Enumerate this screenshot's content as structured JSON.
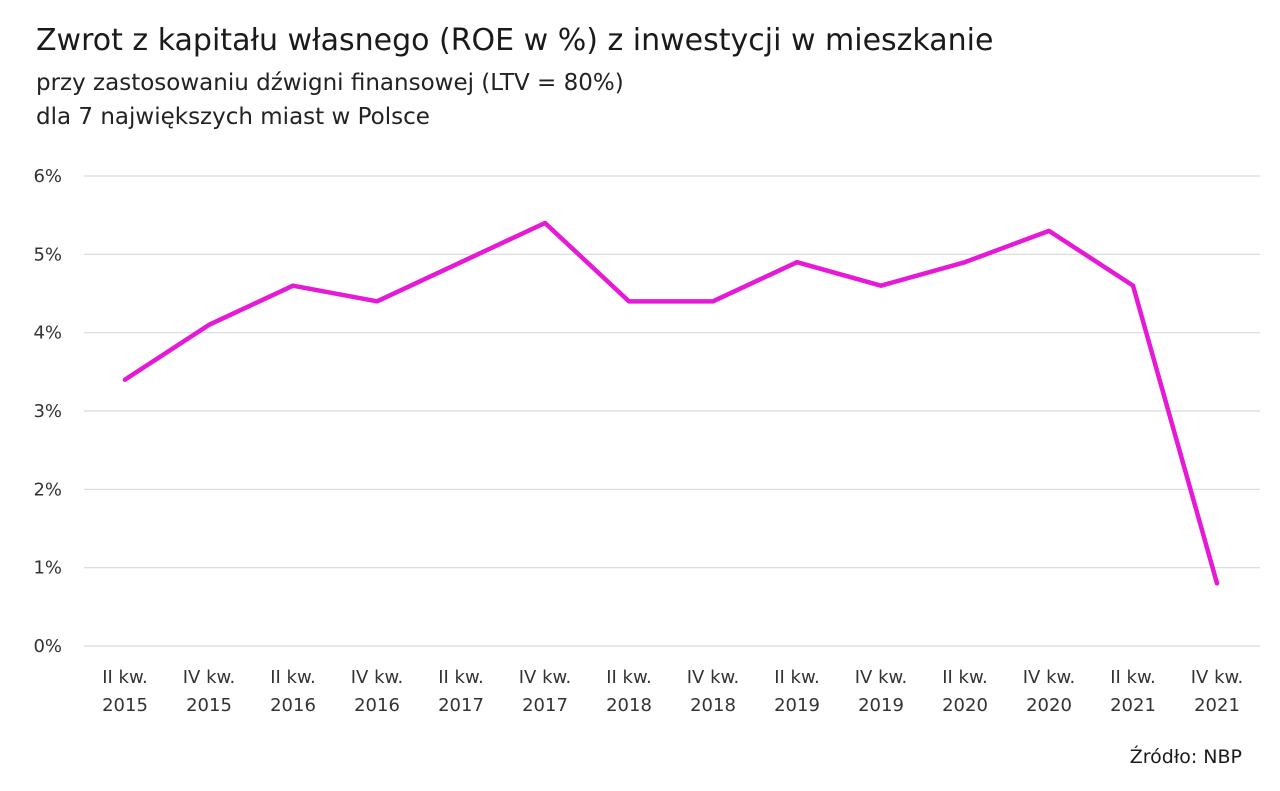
{
  "title": "Zwrot z kapitału własnego (ROE w %) z inwestycji w mieszkanie",
  "subtitle_line1": "przy zastosowaniu dźwigni finansowej (LTV = 80%)",
  "subtitle_line2": "dla 7 największych miast w Polsce",
  "source": "Źródło: NBP",
  "colors": {
    "series": "#e619d6",
    "grid": "#d9d9d9",
    "text": "#333333"
  },
  "chart_data": {
    "type": "line",
    "title": "Zwrot z kapitału własnego (ROE w %) z inwestycji w mieszkanie",
    "subtitle": "przy zastosowaniu dźwigni finansowej (LTV = 80%) dla 7 największych miast w Polsce",
    "xlabel": "",
    "ylabel": "",
    "ylim": [
      0,
      6
    ],
    "yticks": [
      "0%",
      "1%",
      "2%",
      "3%",
      "4%",
      "5%",
      "6%"
    ],
    "grid": true,
    "legend": "none",
    "categories": [
      [
        "II kw.",
        "2015"
      ],
      [
        "IV kw.",
        "2015"
      ],
      [
        "II kw.",
        "2016"
      ],
      [
        "IV kw.",
        "2016"
      ],
      [
        "II kw.",
        "2017"
      ],
      [
        "IV kw.",
        "2017"
      ],
      [
        "II kw.",
        "2018"
      ],
      [
        "IV kw.",
        "2018"
      ],
      [
        "II kw.",
        "2019"
      ],
      [
        "IV kw.",
        "2019"
      ],
      [
        "II kw.",
        "2020"
      ],
      [
        "IV kw.",
        "2020"
      ],
      [
        "II kw.",
        "2021"
      ],
      [
        "IV kw.",
        "2021"
      ]
    ],
    "series": [
      {
        "values": [
          3.4,
          4.1,
          4.6,
          4.4,
          4.9,
          5.4,
          4.4,
          4.4,
          4.9,
          4.6,
          4.9,
          5.3,
          4.6,
          0.8
        ]
      }
    ]
  }
}
